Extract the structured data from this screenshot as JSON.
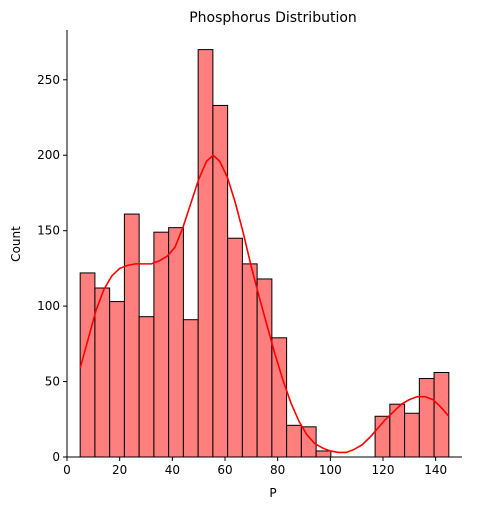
{
  "chart_data": {
    "type": "bar",
    "title": "Phosphorus Distribution",
    "xlabel": "P",
    "ylabel": "Count",
    "xlim": [
      0,
      150
    ],
    "ylim": [
      0,
      283
    ],
    "x_ticks": [
      0,
      20,
      40,
      60,
      80,
      100,
      120,
      140
    ],
    "y_ticks": [
      0,
      50,
      100,
      150,
      200,
      250
    ],
    "grid": false,
    "bar_color": "#ff7f7f",
    "edge_color": "#000000",
    "kde_color": "#ff0000",
    "bins": [
      {
        "x0": 5.0,
        "x1": 10.6,
        "count": 122
      },
      {
        "x0": 10.6,
        "x1": 16.2,
        "count": 112
      },
      {
        "x0": 16.2,
        "x1": 21.8,
        "count": 103
      },
      {
        "x0": 21.8,
        "x1": 27.4,
        "count": 161
      },
      {
        "x0": 27.4,
        "x1": 33.0,
        "count": 93
      },
      {
        "x0": 33.0,
        "x1": 38.6,
        "count": 149
      },
      {
        "x0": 38.6,
        "x1": 44.2,
        "count": 152
      },
      {
        "x0": 44.2,
        "x1": 49.8,
        "count": 91
      },
      {
        "x0": 49.8,
        "x1": 55.4,
        "count": 270
      },
      {
        "x0": 55.4,
        "x1": 61.0,
        "count": 233
      },
      {
        "x0": 61.0,
        "x1": 66.6,
        "count": 145
      },
      {
        "x0": 66.6,
        "x1": 72.2,
        "count": 128
      },
      {
        "x0": 72.2,
        "x1": 77.8,
        "count": 118
      },
      {
        "x0": 77.8,
        "x1": 83.4,
        "count": 79
      },
      {
        "x0": 83.4,
        "x1": 89.0,
        "count": 21
      },
      {
        "x0": 89.0,
        "x1": 94.6,
        "count": 20
      },
      {
        "x0": 94.6,
        "x1": 100.2,
        "count": 4
      },
      {
        "x0": 117.0,
        "x1": 122.6,
        "count": 27
      },
      {
        "x0": 122.6,
        "x1": 128.2,
        "count": 35
      },
      {
        "x0": 128.2,
        "x1": 133.8,
        "count": 29
      },
      {
        "x0": 133.8,
        "x1": 139.4,
        "count": 52
      },
      {
        "x0": 139.4,
        "x1": 145.0,
        "count": 56
      }
    ],
    "kde": [
      [
        5,
        59
      ],
      [
        8,
        78
      ],
      [
        11,
        97
      ],
      [
        14,
        111
      ],
      [
        17,
        120
      ],
      [
        20,
        125
      ],
      [
        23,
        127
      ],
      [
        26,
        128
      ],
      [
        29,
        128
      ],
      [
        32,
        128
      ],
      [
        35,
        130
      ],
      [
        38,
        133
      ],
      [
        41,
        139
      ],
      [
        44,
        152
      ],
      [
        47,
        168
      ],
      [
        50,
        184
      ],
      [
        53,
        196
      ],
      [
        55.5,
        200
      ],
      [
        58,
        196
      ],
      [
        61,
        185
      ],
      [
        64,
        168
      ],
      [
        67,
        148
      ],
      [
        70,
        126
      ],
      [
        73,
        106
      ],
      [
        76,
        87
      ],
      [
        79,
        68
      ],
      [
        82,
        51
      ],
      [
        85,
        36
      ],
      [
        88,
        24
      ],
      [
        91,
        15
      ],
      [
        94,
        9
      ],
      [
        97,
        6
      ],
      [
        100,
        4
      ],
      [
        103,
        3
      ],
      [
        106,
        3
      ],
      [
        109,
        5
      ],
      [
        112,
        8
      ],
      [
        115,
        13
      ],
      [
        118,
        19
      ],
      [
        121,
        25
      ],
      [
        124,
        30
      ],
      [
        127,
        35
      ],
      [
        130,
        38
      ],
      [
        133,
        40
      ],
      [
        136,
        40
      ],
      [
        139,
        38
      ],
      [
        142,
        33
      ],
      [
        145,
        27
      ]
    ]
  }
}
